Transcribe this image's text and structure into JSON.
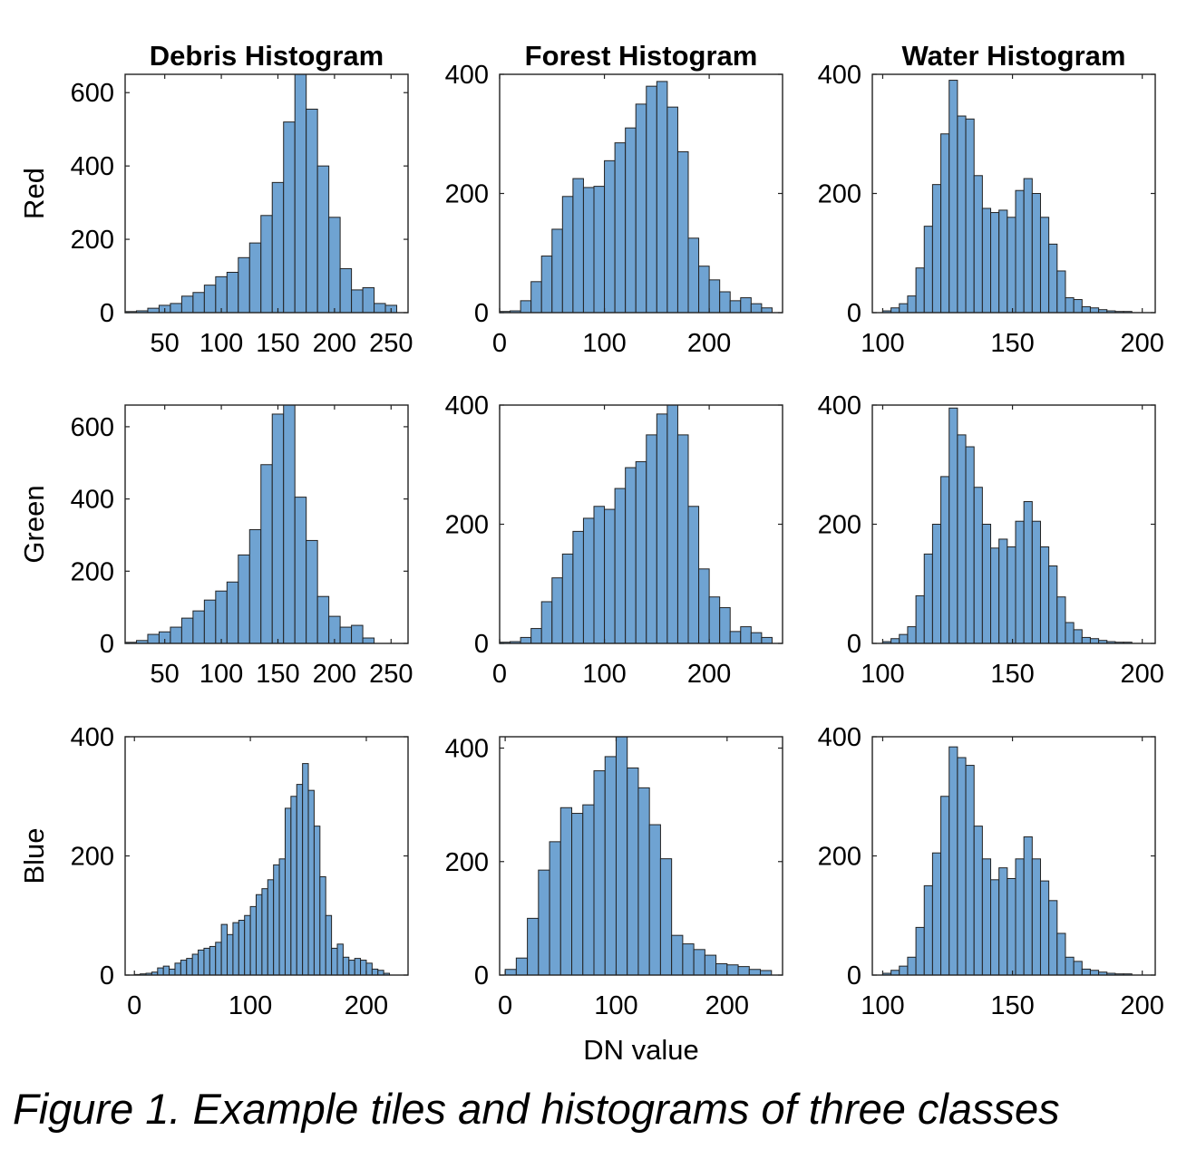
{
  "figure": {
    "caption": "Figure 1. Example tiles and histograms of three classes",
    "bar_color": "#6fa3d2",
    "edge_color": "#222222",
    "row_labels": [
      "Red",
      "Green",
      "Blue"
    ],
    "column_titles": [
      "Debris Histogram",
      "Forest Histogram",
      "Water Histogram"
    ],
    "xlabel": "DN value"
  },
  "chart_data": [
    {
      "type": "bar",
      "title": "Debris Histogram",
      "ylabel": "Red",
      "xlabel": "",
      "xlim": [
        15,
        265
      ],
      "ylim": [
        0,
        650
      ],
      "xticks": [
        50,
        100,
        150,
        200,
        250
      ],
      "yticks": [
        0,
        200,
        400,
        600
      ],
      "bin_start": 15,
      "bin_width": 10,
      "counts": [
        3,
        5,
        12,
        20,
        25,
        45,
        55,
        75,
        98,
        110,
        150,
        190,
        265,
        355,
        520,
        650,
        555,
        400,
        260,
        120,
        62,
        68,
        25,
        20
      ]
    },
    {
      "type": "bar",
      "title": "Forest Histogram",
      "ylabel": "",
      "xlabel": "",
      "xlim": [
        0,
        270
      ],
      "ylim": [
        0,
        400
      ],
      "xticks": [
        0,
        100,
        200
      ],
      "yticks": [
        0,
        200,
        400
      ],
      "bin_start": 0,
      "bin_width": 10,
      "counts": [
        2,
        3,
        20,
        52,
        95,
        140,
        195,
        225,
        210,
        212,
        255,
        285,
        310,
        350,
        380,
        388,
        345,
        270,
        125,
        78,
        55,
        35,
        20,
        25,
        15,
        8
      ]
    },
    {
      "type": "bar",
      "title": "Water Histogram",
      "ylabel": "",
      "xlabel": "",
      "xlim": [
        96,
        205
      ],
      "ylim": [
        0,
        400
      ],
      "xticks": [
        100,
        150,
        200
      ],
      "yticks": [
        0,
        200,
        400
      ],
      "bin_start": 100,
      "bin_width": 3.2,
      "counts": [
        3,
        8,
        15,
        28,
        75,
        145,
        215,
        300,
        390,
        330,
        325,
        230,
        175,
        168,
        172,
        160,
        205,
        225,
        200,
        160,
        115,
        70,
        25,
        22,
        10,
        8,
        5,
        3,
        2,
        2
      ]
    },
    {
      "type": "bar",
      "title": "",
      "ylabel": "Green",
      "xlabel": "",
      "xlim": [
        15,
        265
      ],
      "ylim": [
        0,
        660
      ],
      "xticks": [
        50,
        100,
        150,
        200,
        250
      ],
      "yticks": [
        0,
        200,
        400,
        600
      ],
      "bin_start": 15,
      "bin_width": 10,
      "counts": [
        3,
        8,
        25,
        32,
        45,
        70,
        90,
        120,
        145,
        170,
        245,
        315,
        495,
        635,
        660,
        405,
        285,
        130,
        75,
        45,
        50,
        15
      ]
    },
    {
      "type": "bar",
      "title": "",
      "ylabel": "",
      "xlabel": "",
      "xlim": [
        0,
        270
      ],
      "ylim": [
        0,
        400
      ],
      "xticks": [
        0,
        100,
        200
      ],
      "yticks": [
        0,
        200,
        400
      ],
      "bin_start": 0,
      "bin_width": 10,
      "counts": [
        2,
        3,
        10,
        25,
        70,
        110,
        150,
        188,
        210,
        230,
        225,
        260,
        295,
        305,
        350,
        385,
        400,
        350,
        230,
        125,
        78,
        60,
        20,
        28,
        18,
        10
      ]
    },
    {
      "type": "bar",
      "title": "",
      "ylabel": "",
      "xlabel": "",
      "xlim": [
        96,
        205
      ],
      "ylim": [
        0,
        400
      ],
      "xticks": [
        100,
        150,
        200
      ],
      "yticks": [
        0,
        200,
        400
      ],
      "bin_start": 100,
      "bin_width": 3.2,
      "counts": [
        3,
        8,
        15,
        28,
        80,
        150,
        200,
        280,
        395,
        350,
        330,
        262,
        200,
        160,
        175,
        162,
        205,
        238,
        205,
        162,
        130,
        78,
        35,
        23,
        10,
        8,
        5,
        3,
        2,
        2
      ]
    },
    {
      "type": "bar",
      "title": "",
      "ylabel": "Blue",
      "xlabel": "",
      "xlim": [
        -8,
        236
      ],
      "ylim": [
        0,
        400
      ],
      "xticks": [
        0,
        100,
        200
      ],
      "yticks": [
        0,
        200,
        400
      ],
      "bin_start": 0,
      "bin_width": 5,
      "counts": [
        1,
        2,
        3,
        5,
        12,
        15,
        10,
        20,
        25,
        28,
        35,
        42,
        45,
        48,
        55,
        85,
        68,
        88,
        92,
        100,
        115,
        135,
        145,
        160,
        185,
        195,
        280,
        300,
        320,
        355,
        310,
        250,
        165,
        100,
        45,
        52,
        30,
        25,
        28,
        25,
        20,
        10,
        8,
        3
      ]
    },
    {
      "type": "bar",
      "title": "",
      "ylabel": "",
      "xlabel": "DN value",
      "xlim": [
        -5,
        250
      ],
      "ylim": [
        0,
        420
      ],
      "xticks": [
        0,
        100,
        200
      ],
      "yticks": [
        0,
        200,
        400
      ],
      "bin_start": 0,
      "bin_width": 10,
      "counts": [
        10,
        30,
        100,
        185,
        235,
        295,
        285,
        300,
        360,
        385,
        420,
        365,
        330,
        265,
        205,
        70,
        55,
        45,
        35,
        20,
        18,
        15,
        10,
        8
      ]
    },
    {
      "type": "bar",
      "title": "",
      "ylabel": "",
      "xlabel": "",
      "xlim": [
        96,
        205
      ],
      "ylim": [
        0,
        400
      ],
      "xticks": [
        100,
        150,
        200
      ],
      "yticks": [
        0,
        200,
        400
      ],
      "bin_start": 100,
      "bin_width": 3.2,
      "counts": [
        3,
        8,
        15,
        30,
        80,
        150,
        205,
        300,
        383,
        365,
        352,
        250,
        195,
        160,
        180,
        162,
        195,
        232,
        195,
        158,
        125,
        70,
        30,
        23,
        10,
        8,
        5,
        3,
        2,
        2
      ]
    }
  ]
}
